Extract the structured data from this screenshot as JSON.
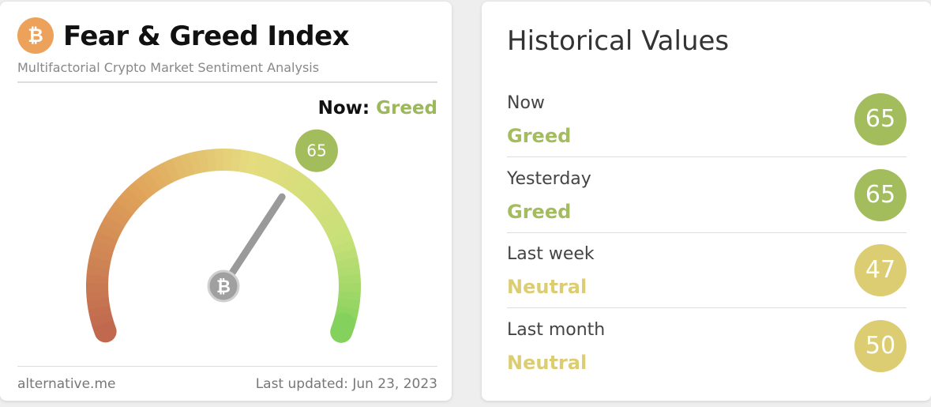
{
  "gauge_card": {
    "title": "Fear & Greed Index",
    "subtitle": "Multifactorial Crypto Market Sentiment Analysis",
    "now_label": "Now:",
    "now_class": "Greed",
    "now_color": "#9cb85a",
    "value": 65,
    "range": [
      0,
      100
    ],
    "source": "alternative.me",
    "updated": "Last updated: Jun 23, 2023"
  },
  "historical": {
    "title": "Historical Values",
    "rows": [
      {
        "period": "Now",
        "class": "Greed",
        "value": 65,
        "color": "#a3bc5c"
      },
      {
        "period": "Yesterday",
        "class": "Greed",
        "value": 65,
        "color": "#a3bc5c"
      },
      {
        "period": "Last week",
        "class": "Neutral",
        "value": 47,
        "color": "#dccd72"
      },
      {
        "period": "Last month",
        "class": "Neutral",
        "value": 50,
        "color": "#dccd72"
      }
    ]
  }
}
